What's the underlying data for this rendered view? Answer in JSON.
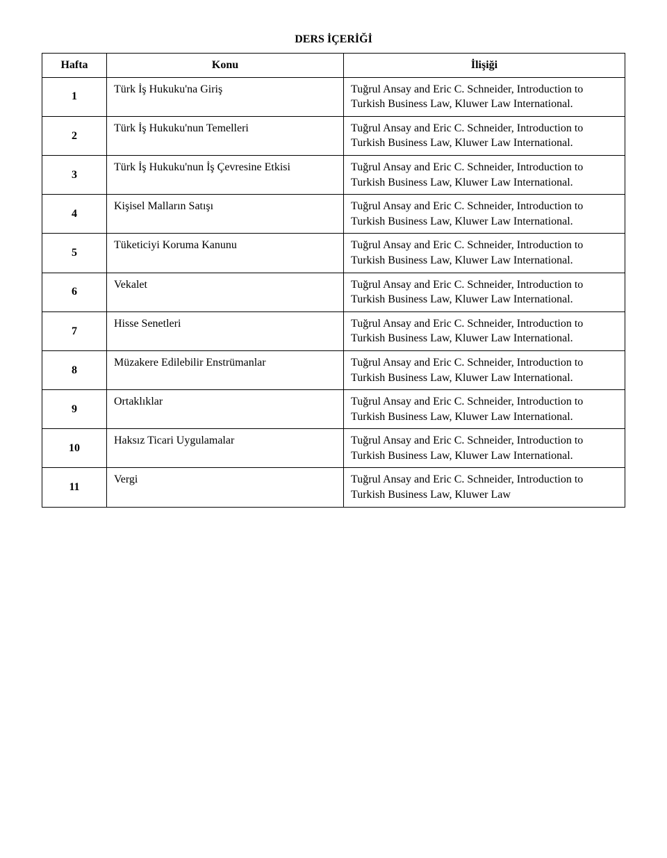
{
  "title": "DERS İÇERİĞİ",
  "headers": {
    "week": "Hafta",
    "topic": "Konu",
    "relation": "İlişiği"
  },
  "reference_full": "Tuğrul Ansay and Eric C. Schneider, Introduction to Turkish Business Law, Kluwer Law International.",
  "reference_partial": "Tuğrul Ansay and Eric C. Schneider, Introduction to Turkish Business Law, Kluwer Law",
  "rows": [
    {
      "week": "1",
      "topic": "Türk İş Hukuku'na Giriş"
    },
    {
      "week": "2",
      "topic": "Türk İş Hukuku'nun Temelleri"
    },
    {
      "week": "3",
      "topic": "Türk İş Hukuku'nun İş Çevresine Etkisi"
    },
    {
      "week": "4",
      "topic": "Kişisel Malların Satışı"
    },
    {
      "week": "5",
      "topic": "Tüketiciyi Koruma Kanunu"
    },
    {
      "week": "6",
      "topic": "Vekalet"
    },
    {
      "week": "7",
      "topic": "Hisse Senetleri"
    },
    {
      "week": "8",
      "topic": "Müzakere Edilebilir Enstrümanlar"
    },
    {
      "week": "9",
      "topic": "Ortaklıklar"
    },
    {
      "week": "10",
      "topic": "Haksız Ticari Uygulamalar"
    },
    {
      "week": "11",
      "topic": "Vergi"
    }
  ]
}
